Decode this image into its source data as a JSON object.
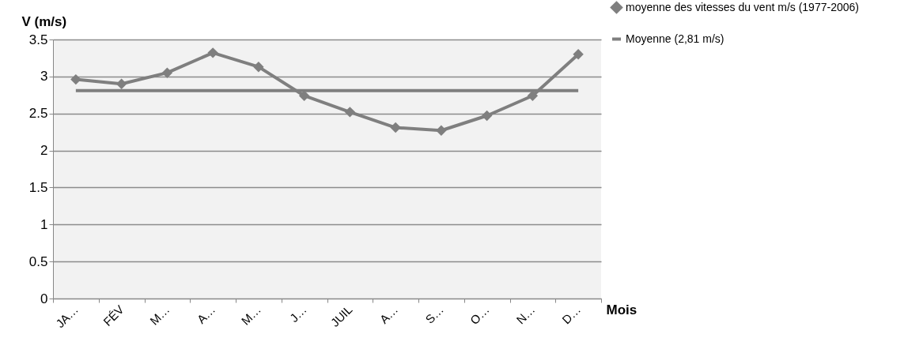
{
  "chart_data": {
    "type": "line",
    "xlabel": "Mois",
    "ylabel": "V (m/s)",
    "categories": [
      "JA…",
      "FÉV",
      "M…",
      "A…",
      "M…",
      "J…",
      "JUIL",
      "A…",
      "S…",
      "O…",
      "N…",
      "D…"
    ],
    "series": [
      {
        "name": "moyenne des vitesses du vent m/s (1977-2006)",
        "color": "#7f7f7f",
        "marker": "diamond",
        "values": [
          2.96,
          2.9,
          3.05,
          3.32,
          3.13,
          2.74,
          2.52,
          2.31,
          2.27,
          2.47,
          2.74,
          3.3
        ]
      },
      {
        "name": "Moyenne (2,81 m/s)",
        "color": "#7f7f7f",
        "marker": "none",
        "values": [
          2.81,
          2.81,
          2.81,
          2.81,
          2.81,
          2.81,
          2.81,
          2.81,
          2.81,
          2.81,
          2.81,
          2.81
        ]
      }
    ],
    "ylim": [
      0,
      3.5
    ],
    "yticks": [
      0,
      0.5,
      1,
      1.5,
      2,
      2.5,
      3,
      3.5
    ],
    "grid": "y",
    "legend": "right",
    "line_style": "solid"
  }
}
